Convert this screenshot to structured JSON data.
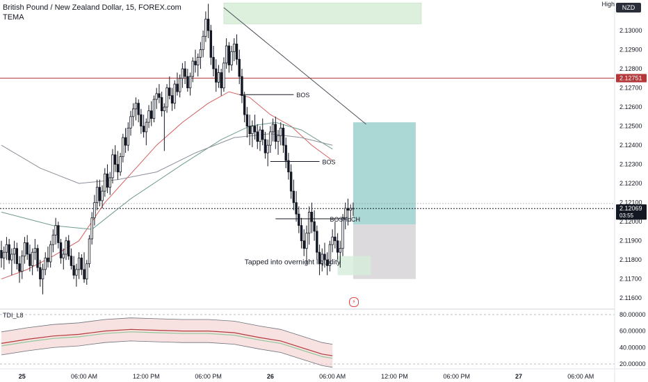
{
  "header": {
    "title": "British Pound / New Zealand Dollar, 15, FOREX.com",
    "indicator": "TEMA",
    "high_label": "High",
    "currency": "NZD",
    "oscillator_label": "TDI_L8"
  },
  "colors": {
    "bull": "#ffffff",
    "bear": "#131722",
    "candle_outline": "#131722",
    "red_line": "#c0393b",
    "ma_red": "#d35f5f",
    "ma_green": "#6f9b8e",
    "ma_gray": "#8a8f99",
    "target_zone": "#8fc9c5",
    "stop_zone": "#d5d1d6",
    "supply_zone": "#cfe8cf",
    "liquidity_zone": "#d6ecda",
    "accent_red_badge": "#b2383a",
    "last_price_badge": "#131722"
  },
  "chart_data": {
    "type": "candlestick",
    "symbol": "GBPNZD",
    "timeframe": "15",
    "y_range": [
      2.1155,
      2.1316
    ],
    "y_ticks": [
      "2.13000",
      "2.12900",
      "2.12800",
      "2.12700",
      "2.12600",
      "2.12500",
      "2.12400",
      "2.12300",
      "2.12200",
      "2.12100",
      "2.12000",
      "2.11900",
      "2.11800",
      "2.11700",
      "2.11600"
    ],
    "y_tick_values": [
      2.13,
      2.129,
      2.128,
      2.127,
      2.126,
      2.125,
      2.124,
      2.123,
      2.122,
      2.121,
      2.12,
      2.119,
      2.118,
      2.117,
      2.116
    ],
    "x_labels": [
      {
        "label": "25",
        "bold": true,
        "index": 8
      },
      {
        "label": "06:00 AM",
        "bold": false,
        "index": 32
      },
      {
        "label": "12:00 PM",
        "bold": false,
        "index": 56
      },
      {
        "label": "06:00 PM",
        "bold": false,
        "index": 80
      },
      {
        "label": "26",
        "bold": true,
        "index": 104
      },
      {
        "label": "06:00 AM",
        "bold": false,
        "index": 128
      },
      {
        "label": "12:00 PM",
        "bold": false,
        "index": 152
      },
      {
        "label": "06:00 PM",
        "bold": false,
        "index": 176
      },
      {
        "label": "27",
        "bold": true,
        "index": 200
      },
      {
        "label": "06:00 AM",
        "bold": false,
        "index": 224
      }
    ],
    "candles_seed": {
      "start": 2.1186,
      "count": 137
    },
    "candles": [
      [
        2.1185,
        2.119,
        2.1176,
        2.1181
      ],
      [
        2.1181,
        2.1187,
        2.1175,
        2.1184
      ],
      [
        2.1184,
        2.1192,
        2.118,
        2.1188
      ],
      [
        2.1188,
        2.1191,
        2.1178,
        2.118
      ],
      [
        2.118,
        2.1186,
        2.1172,
        2.1183
      ],
      [
        2.1183,
        2.119,
        2.1178,
        2.1186
      ],
      [
        2.1186,
        2.1189,
        2.1175,
        2.1178
      ],
      [
        2.1178,
        2.1182,
        2.1168,
        2.1174
      ],
      [
        2.1174,
        2.1185,
        2.117,
        2.1182
      ],
      [
        2.1182,
        2.1192,
        2.1178,
        2.1189
      ],
      [
        2.1189,
        2.1193,
        2.118,
        2.1183
      ],
      [
        2.1183,
        2.1188,
        2.1174,
        2.1177
      ],
      [
        2.1177,
        2.1186,
        2.1172,
        2.1184
      ],
      [
        2.1184,
        2.1191,
        2.118,
        2.1186
      ],
      [
        2.1186,
        2.1188,
        2.1174,
        2.1176
      ],
      [
        2.1176,
        2.118,
        2.1166,
        2.117
      ],
      [
        2.117,
        2.1178,
        2.1162,
        2.1175
      ],
      [
        2.1175,
        2.1184,
        2.1172,
        2.1181
      ],
      [
        2.1181,
        2.1187,
        2.1176,
        2.1179
      ],
      [
        2.1179,
        2.119,
        2.1176,
        2.1188
      ],
      [
        2.1188,
        2.1196,
        2.1184,
        2.1193
      ],
      [
        2.1193,
        2.1202,
        2.1188,
        2.1198
      ],
      [
        2.1198,
        2.12,
        2.1186,
        2.1189
      ],
      [
        2.1189,
        2.1191,
        2.1178,
        2.1181
      ],
      [
        2.1181,
        2.1186,
        2.1175,
        2.1183
      ],
      [
        2.1183,
        2.1192,
        2.118,
        2.119
      ],
      [
        2.119,
        2.1193,
        2.118,
        2.1182
      ],
      [
        2.1182,
        2.1186,
        2.1175,
        2.1177
      ],
      [
        2.1177,
        2.1182,
        2.117,
        2.1172
      ],
      [
        2.1172,
        2.1178,
        2.1166,
        2.1175
      ],
      [
        2.1175,
        2.1184,
        2.117,
        2.1181
      ],
      [
        2.1181,
        2.1183,
        2.1172,
        2.1175
      ],
      [
        2.1175,
        2.1184,
        2.1168,
        2.117
      ],
      [
        2.117,
        2.118,
        2.1167,
        2.1178
      ],
      [
        2.1178,
        2.1193,
        2.1176,
        2.1191
      ],
      [
        2.1191,
        2.1205,
        2.1188,
        2.1202
      ],
      [
        2.1202,
        2.1214,
        2.1198,
        2.121
      ],
      [
        2.121,
        2.1222,
        2.1206,
        2.1218
      ],
      [
        2.1218,
        2.1222,
        2.1208,
        2.1211
      ],
      [
        2.1211,
        2.1219,
        2.1207,
        2.1216
      ],
      [
        2.1216,
        2.1228,
        2.1213,
        2.1225
      ],
      [
        2.1225,
        2.123,
        2.1215,
        2.1218
      ],
      [
        2.1218,
        2.1226,
        2.1214,
        2.1223
      ],
      [
        2.1223,
        2.1238,
        2.122,
        2.1235
      ],
      [
        2.1235,
        2.124,
        2.1226,
        2.123
      ],
      [
        2.123,
        2.1237,
        2.1222,
        2.1226
      ],
      [
        2.1226,
        2.1236,
        2.1224,
        2.1234
      ],
      [
        2.1234,
        2.1246,
        2.1231,
        2.1244
      ],
      [
        2.1244,
        2.1249,
        2.1236,
        2.124
      ],
      [
        2.124,
        2.1252,
        2.1237,
        2.1249
      ],
      [
        2.1249,
        2.1258,
        2.1245,
        2.1255
      ],
      [
        2.1255,
        2.1262,
        2.125,
        2.1259
      ],
      [
        2.1259,
        2.1265,
        2.1253,
        2.1262
      ],
      [
        2.1262,
        2.1264,
        2.1252,
        2.1256
      ],
      [
        2.1256,
        2.1259,
        2.1246,
        2.125
      ],
      [
        2.125,
        2.1256,
        2.1244,
        2.1247
      ],
      [
        2.1247,
        2.1254,
        2.124,
        2.1252
      ],
      [
        2.1252,
        2.1261,
        2.1249,
        2.1258
      ],
      [
        2.1258,
        2.1263,
        2.125,
        2.1254
      ],
      [
        2.1254,
        2.1266,
        2.1252,
        2.1264
      ],
      [
        2.1264,
        2.127,
        2.1259,
        2.1267
      ],
      [
        2.1267,
        2.1272,
        2.1262,
        2.1265
      ],
      [
        2.1265,
        2.1268,
        2.1255,
        2.1258
      ],
      [
        2.1258,
        2.1262,
        2.1237,
        2.126
      ],
      [
        2.126,
        2.1272,
        2.1257,
        2.127
      ],
      [
        2.127,
        2.1276,
        2.1264,
        2.1266
      ],
      [
        2.1266,
        2.127,
        2.1258,
        2.1262
      ],
      [
        2.1262,
        2.1274,
        2.1259,
        2.1272
      ],
      [
        2.1272,
        2.1278,
        2.1266,
        2.1268
      ],
      [
        2.1268,
        2.1277,
        2.1265,
        2.1275
      ],
      [
        2.1275,
        2.1283,
        2.127,
        2.128
      ],
      [
        2.128,
        2.1284,
        2.1272,
        2.1276
      ],
      [
        2.1276,
        2.128,
        2.1268,
        2.127
      ],
      [
        2.127,
        2.1278,
        2.1266,
        2.1276
      ],
      [
        2.1276,
        2.1286,
        2.1273,
        2.1284
      ],
      [
        2.1284,
        2.129,
        2.1278,
        2.1282
      ],
      [
        2.1282,
        2.1288,
        2.1276,
        2.1286
      ],
      [
        2.1286,
        2.1294,
        2.128,
        2.129
      ],
      [
        2.129,
        2.13,
        2.1286,
        2.1297
      ],
      [
        2.1297,
        2.131,
        2.1294,
        2.1306
      ],
      [
        2.1306,
        2.1314,
        2.1296,
        2.13
      ],
      [
        2.13,
        2.1303,
        2.1282,
        2.1286
      ],
      [
        2.1286,
        2.1292,
        2.1276,
        2.128
      ],
      [
        2.128,
        2.1285,
        2.1268,
        2.1273
      ],
      [
        2.1273,
        2.1282,
        2.127,
        2.1278
      ],
      [
        2.1278,
        2.128,
        2.1266,
        2.127
      ],
      [
        2.127,
        2.1286,
        2.1268,
        2.1283
      ],
      [
        2.1283,
        2.1296,
        2.128,
        2.1292
      ],
      [
        2.1292,
        2.1294,
        2.1278,
        2.1282
      ],
      [
        2.1282,
        2.1292,
        2.1279,
        2.1289
      ],
      [
        2.1289,
        2.1296,
        2.1284,
        2.1293
      ],
      [
        2.1293,
        2.1298,
        2.1282,
        2.1285
      ],
      [
        2.1285,
        2.129,
        2.1272,
        2.1276
      ],
      [
        2.1276,
        2.128,
        2.1262,
        2.1266
      ],
      [
        2.1266,
        2.1268,
        2.1252,
        2.1256
      ],
      [
        2.1256,
        2.126,
        2.1244,
        2.125
      ],
      [
        2.125,
        2.1256,
        2.124,
        2.1246
      ],
      [
        2.1246,
        2.1253,
        2.1239,
        2.125
      ],
      [
        2.125,
        2.1256,
        2.1243,
        2.1247
      ],
      [
        2.1247,
        2.1251,
        2.1238,
        2.1242
      ],
      [
        2.1242,
        2.125,
        2.1237,
        2.1248
      ],
      [
        2.1248,
        2.1254,
        2.124,
        2.1243
      ],
      [
        2.1243,
        2.1247,
        2.1233,
        2.1236
      ],
      [
        2.1236,
        2.1243,
        2.1229,
        2.124
      ],
      [
        2.124,
        2.125,
        2.1236,
        2.1247
      ],
      [
        2.1247,
        2.1254,
        2.1242,
        2.1251
      ],
      [
        2.1251,
        2.1255,
        2.1238,
        2.1242
      ],
      [
        2.1242,
        2.1248,
        2.1235,
        2.1245
      ],
      [
        2.1245,
        2.1252,
        2.124,
        2.1249
      ],
      [
        2.1249,
        2.1251,
        2.1236,
        2.124
      ],
      [
        2.124,
        2.1244,
        2.1228,
        2.1232
      ],
      [
        2.1232,
        2.1236,
        2.1222,
        2.1226
      ],
      [
        2.1226,
        2.123,
        2.1212,
        2.1216
      ],
      [
        2.1216,
        2.1222,
        2.1206,
        2.121
      ],
      [
        2.121,
        2.1216,
        2.12,
        2.1204
      ],
      [
        2.1204,
        2.1208,
        2.1194,
        2.1198
      ],
      [
        2.1198,
        2.1202,
        2.1186,
        2.119
      ],
      [
        2.119,
        2.1196,
        2.1182,
        2.1186
      ],
      [
        2.1186,
        2.1198,
        2.1178,
        2.1194
      ],
      [
        2.1194,
        2.1208,
        2.1188,
        2.1205
      ],
      [
        2.1205,
        2.121,
        2.1194,
        2.12
      ],
      [
        2.12,
        2.1206,
        2.119,
        2.1195
      ],
      [
        2.1195,
        2.1198,
        2.118,
        2.1184
      ],
      [
        2.1184,
        2.1188,
        2.1172,
        2.1178
      ],
      [
        2.1178,
        2.1186,
        2.1174,
        2.1183
      ],
      [
        2.1183,
        2.1189,
        2.1176,
        2.118
      ],
      [
        2.118,
        2.1184,
        2.1172,
        2.1177
      ],
      [
        2.1177,
        2.119,
        2.1174,
        2.1188
      ],
      [
        2.1188,
        2.1196,
        2.1184,
        2.1192
      ],
      [
        2.1192,
        2.12,
        2.1186,
        2.119
      ],
      [
        2.119,
        2.1194,
        2.118,
        2.1184
      ],
      [
        2.1184,
        2.119,
        2.1176,
        2.1186
      ],
      [
        2.1186,
        2.1204,
        2.1182,
        2.1202
      ],
      [
        2.1202,
        2.121,
        2.1196,
        2.1207
      ],
      [
        2.1207,
        2.1212,
        2.1198,
        2.1206
      ],
      [
        2.1206,
        2.1209,
        2.12,
        2.1207
      ],
      [
        2.1207,
        2.121,
        2.1203,
        2.1207
      ]
    ],
    "moving_averages": [
      {
        "name": "TEMA",
        "color": "#d35f5f",
        "points": [
          [
            0,
            2.117
          ],
          [
            10,
            2.1175
          ],
          [
            20,
            2.1182
          ],
          [
            30,
            2.119
          ],
          [
            40,
            2.121
          ],
          [
            50,
            2.1225
          ],
          [
            60,
            2.124
          ],
          [
            70,
            2.1252
          ],
          [
            80,
            2.1262
          ],
          [
            88,
            2.1268
          ],
          [
            96,
            2.1265
          ],
          [
            104,
            2.1256
          ],
          [
            112,
            2.125
          ],
          [
            120,
            2.124
          ],
          [
            128,
            2.1232
          ]
        ]
      },
      {
        "name": "",
        "color": "#6f9b8e",
        "points": [
          [
            0,
            2.1205
          ],
          [
            20,
            2.1198
          ],
          [
            35,
            2.1196
          ],
          [
            50,
            2.1212
          ],
          [
            70,
            2.123
          ],
          [
            85,
            2.1243
          ],
          [
            96,
            2.125
          ],
          [
            106,
            2.1252
          ],
          [
            116,
            2.1248
          ],
          [
            128,
            2.1238
          ]
        ]
      },
      {
        "name": "",
        "color": "#8a8f99",
        "points": [
          [
            0,
            2.124
          ],
          [
            15,
            2.1228
          ],
          [
            30,
            2.122
          ],
          [
            45,
            2.1222
          ],
          [
            60,
            2.1226
          ],
          [
            75,
            2.1236
          ],
          [
            90,
            2.1244
          ],
          [
            104,
            2.1246
          ],
          [
            116,
            2.1244
          ],
          [
            128,
            2.124
          ]
        ]
      }
    ],
    "horizontal_lines": [
      {
        "price": 2.12751,
        "color": "#b2383a",
        "label": "2.12751"
      },
      {
        "price": 2.12069,
        "color": "#131722",
        "label": "2.12069",
        "countdown": "03:55"
      }
    ],
    "annotations": [
      {
        "type": "text",
        "text": "BOS",
        "index": 100,
        "price": 2.12665
      },
      {
        "type": "text",
        "text": "BOS",
        "index": 118,
        "price": 2.12315
      },
      {
        "type": "text",
        "text": "BOSHoCH",
        "index": 124,
        "price": 2.12015
      },
      {
        "type": "text",
        "text": "Tapped into overnight liquidity",
        "index": 97,
        "price": 2.11792
      }
    ],
    "oscillator": {
      "name": "TDI_L8",
      "y_ticks": [
        "80.00000",
        "60.00000",
        "40.00000",
        "20.00000"
      ],
      "y_tick_values": [
        80,
        60,
        40,
        20
      ],
      "red_series": [
        [
          0,
          45
        ],
        [
          10,
          50
        ],
        [
          20,
          54
        ],
        [
          30,
          56
        ],
        [
          40,
          60
        ],
        [
          50,
          62
        ],
        [
          60,
          61
        ],
        [
          70,
          60
        ],
        [
          80,
          60
        ],
        [
          90,
          58
        ],
        [
          100,
          52
        ],
        [
          108,
          48
        ],
        [
          116,
          40
        ],
        [
          124,
          32
        ],
        [
          128,
          30
        ]
      ]
    }
  }
}
